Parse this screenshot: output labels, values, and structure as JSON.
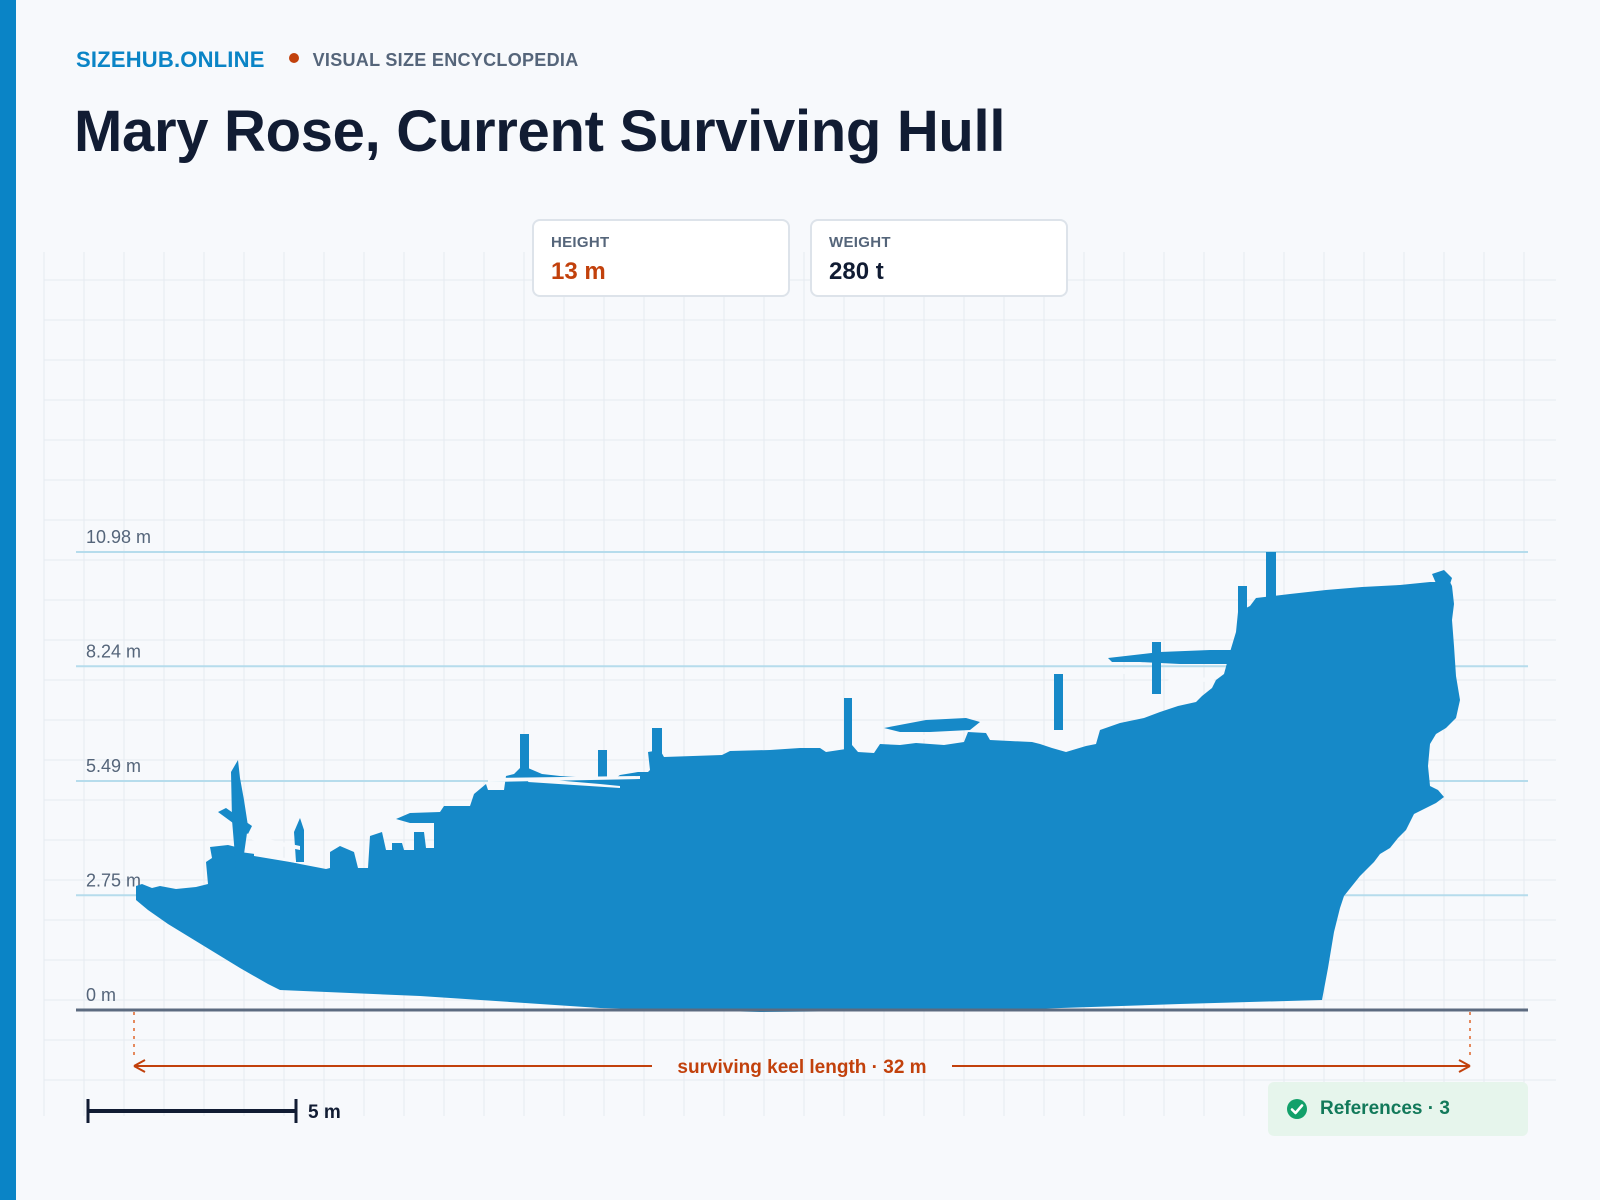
{
  "header": {
    "brand": "SIZEHUB.ONLINE",
    "tagline": "VISUAL SIZE ENCYCLOPEDIA",
    "title": "Mary Rose, Current Surviving Hull"
  },
  "stats": [
    {
      "label": "HEIGHT",
      "value": "13 m",
      "color": "#c2410c"
    },
    {
      "label": "WEIGHT",
      "value": "280 t",
      "color": "#111c33"
    }
  ],
  "colors": {
    "accent": "#0a84c6",
    "silhouette": "#1689c8",
    "measure": "#c2410c",
    "refs_green": "#12795a"
  },
  "diagram": {
    "levels": [
      {
        "label": "0 m",
        "value": 0
      },
      {
        "label": "2.75 m",
        "value": 2.75
      },
      {
        "label": "5.49 m",
        "value": 5.49
      },
      {
        "label": "8.24 m",
        "value": 8.24
      },
      {
        "label": "10.98 m",
        "value": 10.98
      }
    ],
    "keel_label": "surviving keel length · 32 m",
    "scale_label": "5 m"
  },
  "references": {
    "label": "References · 3",
    "icon": "check-circle-icon"
  }
}
